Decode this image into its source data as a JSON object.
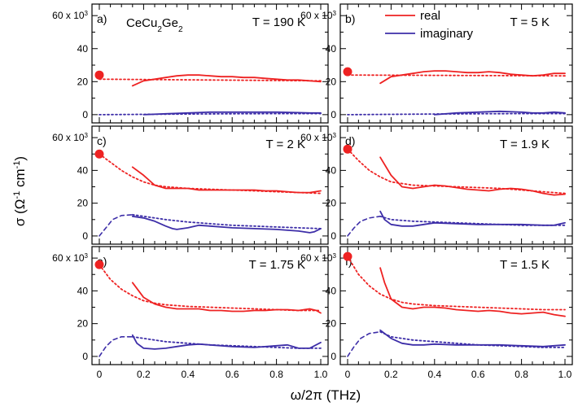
{
  "figure": {
    "xlabel": "ω/2π (THz)",
    "ylabel": {
      "base": "σ (Ω",
      "exp1": "-1",
      "mid": " cm",
      "exp2": "-1",
      "close": ")"
    },
    "ytop_label": {
      "prefix": "60 x 10",
      "exp": "3"
    },
    "material": {
      "a": "CeCu",
      "sub1": "2",
      "b": "Ge",
      "sub2": "2"
    },
    "colors": {
      "real": "#ee2222",
      "imaginary": "#3d2ea8"
    }
  },
  "chart_data": [
    {
      "type": "line",
      "panel": "a)",
      "title": "T = 190 K",
      "xlim": [
        0,
        1.0
      ],
      "ylim": [
        -5,
        67
      ],
      "yticks": [
        0,
        20,
        40
      ],
      "xticks": [
        0,
        0.2,
        0.4,
        0.6,
        0.8,
        1.0
      ],
      "dc_point": {
        "x": 0,
        "y": 24
      },
      "series": [
        {
          "name": "real",
          "style": "solid",
          "x": [
            0.15,
            0.2,
            0.25,
            0.3,
            0.35,
            0.4,
            0.45,
            0.5,
            0.55,
            0.6,
            0.65,
            0.7,
            0.75,
            0.8,
            0.85,
            0.9,
            0.95,
            1.0
          ],
          "y": [
            17.5,
            20.5,
            21.5,
            22.5,
            23.5,
            24,
            24,
            23.5,
            23,
            23,
            22.5,
            22.5,
            22,
            21.5,
            21,
            21,
            20.5,
            20
          ]
        },
        {
          "name": "real fit",
          "style": "dotted",
          "x": [
            0,
            1.0
          ],
          "y": [
            21.5,
            20.5
          ]
        },
        {
          "name": "imaginary",
          "style": "solid",
          "x": [
            0.2,
            0.3,
            0.4,
            0.5,
            0.6,
            0.7,
            0.8,
            0.9,
            0.95,
            1.0
          ],
          "y": [
            0,
            0.5,
            1,
            1.5,
            1.5,
            1.5,
            1.5,
            1.2,
            1,
            1
          ]
        },
        {
          "name": "imaginary fit",
          "style": "dotted",
          "x": [
            0,
            0.2,
            0.4,
            0.6,
            0.8,
            1.0
          ],
          "y": [
            0,
            0.2,
            0.4,
            0.5,
            0.6,
            0.6
          ]
        }
      ]
    },
    {
      "type": "line",
      "panel": "b)",
      "title": "T = 5 K",
      "xlim": [
        0,
        1.0
      ],
      "ylim": [
        -5,
        67
      ],
      "yticks": [
        0,
        20,
        40
      ],
      "xticks": [
        0,
        0.2,
        0.4,
        0.6,
        0.8,
        1.0
      ],
      "dc_point": {
        "x": 0,
        "y": 26
      },
      "legend": [
        {
          "label": "real",
          "series": "real"
        },
        {
          "label": "imaginary",
          "series": "imaginary"
        }
      ],
      "series": [
        {
          "name": "real",
          "style": "solid",
          "x": [
            0.15,
            0.2,
            0.25,
            0.3,
            0.35,
            0.4,
            0.45,
            0.5,
            0.55,
            0.6,
            0.65,
            0.7,
            0.75,
            0.8,
            0.85,
            0.9,
            0.95,
            1.0
          ],
          "y": [
            19,
            23,
            24,
            25,
            26,
            26.5,
            26.5,
            26,
            25.5,
            25.5,
            26,
            25.5,
            24.5,
            24,
            23.5,
            24,
            25,
            25
          ]
        },
        {
          "name": "real fit",
          "style": "dotted",
          "x": [
            0,
            1.0
          ],
          "y": [
            24,
            23.5
          ]
        },
        {
          "name": "imaginary",
          "style": "solid",
          "x": [
            0.4,
            0.5,
            0.6,
            0.7,
            0.8,
            0.85,
            0.9,
            0.95,
            1.0
          ],
          "y": [
            0,
            1,
            1.5,
            2,
            1.5,
            1,
            1,
            1.5,
            1
          ]
        },
        {
          "name": "imaginary fit",
          "style": "dotted",
          "x": [
            0,
            0.2,
            0.4,
            0.6,
            0.8,
            1.0
          ],
          "y": [
            0,
            0.2,
            0.4,
            0.5,
            0.6,
            0.6
          ]
        }
      ]
    },
    {
      "type": "line",
      "panel": "c)",
      "title": "T = 2 K",
      "xlim": [
        0,
        1.0
      ],
      "ylim": [
        -5,
        67
      ],
      "yticks": [
        0,
        20,
        40
      ],
      "xticks": [
        0,
        0.2,
        0.4,
        0.6,
        0.8,
        1.0
      ],
      "dc_point": {
        "x": 0,
        "y": 50
      },
      "series": [
        {
          "name": "real",
          "style": "solid",
          "x": [
            0.15,
            0.2,
            0.25,
            0.3,
            0.35,
            0.4,
            0.45,
            0.5,
            0.55,
            0.6,
            0.65,
            0.7,
            0.75,
            0.8,
            0.85,
            0.9,
            0.95,
            1.0
          ],
          "y": [
            42,
            37,
            31,
            29,
            29,
            29,
            28,
            28,
            28,
            28,
            28,
            28,
            27.5,
            27.5,
            27,
            26.5,
            26.5,
            27.5
          ]
        },
        {
          "name": "real fit",
          "style": "dotted",
          "x": [
            0,
            0.05,
            0.1,
            0.15,
            0.2,
            0.25,
            0.3,
            0.4,
            0.5,
            0.6,
            0.7,
            0.8,
            0.9,
            1.0
          ],
          "y": [
            50,
            45,
            40,
            36,
            33,
            31,
            30,
            29,
            28.5,
            28,
            27.5,
            27,
            26.5,
            26
          ]
        },
        {
          "name": "imaginary",
          "style": "solid",
          "x": [
            0.15,
            0.2,
            0.25,
            0.3,
            0.33,
            0.35,
            0.4,
            0.45,
            0.5,
            0.6,
            0.7,
            0.8,
            0.9,
            0.95,
            0.97,
            1.0
          ],
          "y": [
            12,
            11,
            9,
            6,
            4.5,
            4,
            5,
            6.5,
            6,
            5,
            4.5,
            4,
            3,
            2,
            2.5,
            4.5
          ]
        },
        {
          "name": "imaginary fit",
          "style": "dashed",
          "x": [
            0,
            0.03,
            0.06,
            0.1,
            0.15
          ],
          "y": [
            0,
            5,
            10,
            12.5,
            13
          ]
        },
        {
          "name": "imaginary fit",
          "style": "dotted",
          "x": [
            0.15,
            0.2,
            0.3,
            0.4,
            0.5,
            0.6,
            0.7,
            0.8,
            0.9,
            1.0
          ],
          "y": [
            13,
            12,
            10,
            8.5,
            7.5,
            6.5,
            6,
            5.5,
            5,
            4.5
          ]
        }
      ]
    },
    {
      "type": "line",
      "panel": "d)",
      "title": "T = 1.9 K",
      "xlim": [
        0,
        1.0
      ],
      "ylim": [
        -5,
        67
      ],
      "yticks": [
        0,
        20,
        40
      ],
      "xticks": [
        0,
        0.2,
        0.4,
        0.6,
        0.8,
        1.0
      ],
      "dc_point": {
        "x": 0,
        "y": 53
      },
      "series": [
        {
          "name": "real",
          "style": "solid",
          "x": [
            0.15,
            0.2,
            0.25,
            0.3,
            0.35,
            0.4,
            0.45,
            0.5,
            0.55,
            0.6,
            0.65,
            0.7,
            0.75,
            0.8,
            0.85,
            0.9,
            0.95,
            1.0
          ],
          "y": [
            48,
            37,
            30,
            29,
            30,
            31,
            30.5,
            29.5,
            28.5,
            28,
            27.5,
            28.5,
            29,
            28.5,
            27.5,
            26,
            25,
            25.5
          ]
        },
        {
          "name": "real fit",
          "style": "dotted",
          "x": [
            0,
            0.05,
            0.1,
            0.15,
            0.2,
            0.25,
            0.3,
            0.4,
            0.5,
            0.6,
            0.7,
            0.8,
            0.9,
            1.0
          ],
          "y": [
            53,
            46,
            40,
            36,
            33,
            32,
            31,
            30.5,
            30,
            29.5,
            29,
            28,
            27,
            26
          ]
        },
        {
          "name": "imaginary",
          "style": "solid",
          "x": [
            0.15,
            0.17,
            0.2,
            0.25,
            0.3,
            0.35,
            0.4,
            0.5,
            0.6,
            0.7,
            0.8,
            0.9,
            0.95,
            1.0
          ],
          "y": [
            15,
            10,
            7,
            6,
            6,
            7,
            8,
            7.5,
            7,
            7,
            7,
            6.5,
            6.5,
            8
          ]
        },
        {
          "name": "imaginary fit",
          "style": "dashed",
          "x": [
            0,
            0.03,
            0.06,
            0.1,
            0.15
          ],
          "y": [
            0,
            5,
            9,
            11,
            12
          ]
        },
        {
          "name": "imaginary fit",
          "style": "dotted",
          "x": [
            0.15,
            0.2,
            0.3,
            0.4,
            0.5,
            0.6,
            0.7,
            0.8,
            0.9,
            1.0
          ],
          "y": [
            12,
            10,
            9,
            8.5,
            8,
            7.5,
            7,
            6.5,
            6.5,
            6.5
          ]
        }
      ]
    },
    {
      "type": "line",
      "panel": "e)",
      "title": "T = 1.75 K",
      "xlim": [
        0,
        1.0
      ],
      "ylim": [
        -5,
        67
      ],
      "yticks": [
        0,
        20,
        40
      ],
      "xticks": [
        0,
        0.2,
        0.4,
        0.6,
        0.8,
        1.0
      ],
      "dc_point": {
        "x": 0,
        "y": 56
      },
      "series": [
        {
          "name": "real",
          "style": "solid",
          "x": [
            0.15,
            0.2,
            0.25,
            0.3,
            0.35,
            0.4,
            0.45,
            0.5,
            0.55,
            0.6,
            0.65,
            0.7,
            0.75,
            0.8,
            0.85,
            0.9,
            0.95,
            0.98,
            1.0
          ],
          "y": [
            45,
            36,
            32,
            30,
            29,
            29,
            29,
            28,
            28,
            27.5,
            27.5,
            28,
            28,
            28.5,
            28.5,
            28,
            29,
            28,
            26.5
          ]
        },
        {
          "name": "real fit",
          "style": "dotted",
          "x": [
            0,
            0.05,
            0.1,
            0.15,
            0.2,
            0.25,
            0.3,
            0.4,
            0.5,
            0.6,
            0.7,
            0.8,
            0.9,
            1.0
          ],
          "y": [
            56,
            47,
            41,
            37,
            34,
            32.5,
            31.5,
            30.5,
            30,
            29.5,
            29,
            28.5,
            28,
            28
          ]
        },
        {
          "name": "imaginary",
          "style": "solid",
          "x": [
            0.15,
            0.17,
            0.2,
            0.25,
            0.3,
            0.35,
            0.4,
            0.45,
            0.5,
            0.6,
            0.7,
            0.8,
            0.85,
            0.9,
            0.95,
            1.0
          ],
          "y": [
            13,
            8,
            5,
            4.5,
            5,
            6,
            7,
            7.5,
            7,
            6,
            5.5,
            6.5,
            7,
            5,
            5,
            8.5
          ]
        },
        {
          "name": "imaginary fit",
          "style": "dashed",
          "x": [
            0,
            0.03,
            0.06,
            0.1,
            0.15
          ],
          "y": [
            0,
            6,
            10,
            12,
            12
          ]
        },
        {
          "name": "imaginary fit",
          "style": "dotted",
          "x": [
            0.15,
            0.2,
            0.3,
            0.4,
            0.5,
            0.6,
            0.7,
            0.8,
            0.9,
            1.0
          ],
          "y": [
            12,
            11,
            9,
            8,
            7,
            6.5,
            6,
            5.5,
            5,
            5
          ]
        }
      ]
    },
    {
      "type": "line",
      "panel": "f)",
      "title": "T = 1.5 K",
      "xlim": [
        0,
        1.0
      ],
      "ylim": [
        -5,
        67
      ],
      "yticks": [
        0,
        20,
        40
      ],
      "xticks": [
        0,
        0.2,
        0.4,
        0.6,
        0.8,
        1.0
      ],
      "dc_point": {
        "x": 0,
        "y": 61
      },
      "series": [
        {
          "name": "real",
          "style": "solid",
          "x": [
            0.15,
            0.17,
            0.2,
            0.25,
            0.3,
            0.35,
            0.4,
            0.45,
            0.5,
            0.55,
            0.6,
            0.65,
            0.7,
            0.75,
            0.8,
            0.85,
            0.9,
            0.95,
            1.0
          ],
          "y": [
            54,
            45,
            35,
            30,
            29,
            30,
            30,
            29.5,
            28.5,
            28,
            27.5,
            28,
            27.5,
            26.5,
            26,
            26.5,
            27,
            25.5,
            24.5
          ]
        },
        {
          "name": "real fit",
          "style": "dotted",
          "x": [
            0,
            0.05,
            0.1,
            0.15,
            0.2,
            0.25,
            0.3,
            0.4,
            0.5,
            0.6,
            0.7,
            0.8,
            0.9,
            1.0
          ],
          "y": [
            61,
            50,
            43,
            38,
            35,
            33,
            32,
            31,
            30.5,
            30,
            29.5,
            29,
            28.5,
            28.5
          ]
        },
        {
          "name": "imaginary",
          "style": "solid",
          "x": [
            0.15,
            0.2,
            0.25,
            0.3,
            0.35,
            0.4,
            0.5,
            0.6,
            0.7,
            0.8,
            0.9,
            0.95,
            1.0
          ],
          "y": [
            16,
            11,
            8,
            7,
            7,
            7.5,
            7,
            7,
            7,
            6.5,
            6,
            6.5,
            7
          ]
        },
        {
          "name": "imaginary fit",
          "style": "dashed",
          "x": [
            0,
            0.03,
            0.06,
            0.1,
            0.15
          ],
          "y": [
            0,
            6,
            11,
            14,
            15
          ]
        },
        {
          "name": "imaginary fit",
          "style": "dotted",
          "x": [
            0.15,
            0.2,
            0.3,
            0.4,
            0.5,
            0.6,
            0.7,
            0.8,
            0.9,
            1.0
          ],
          "y": [
            15,
            12,
            10,
            9,
            8,
            7,
            6.5,
            6,
            5.5,
            5.5
          ]
        }
      ]
    }
  ]
}
